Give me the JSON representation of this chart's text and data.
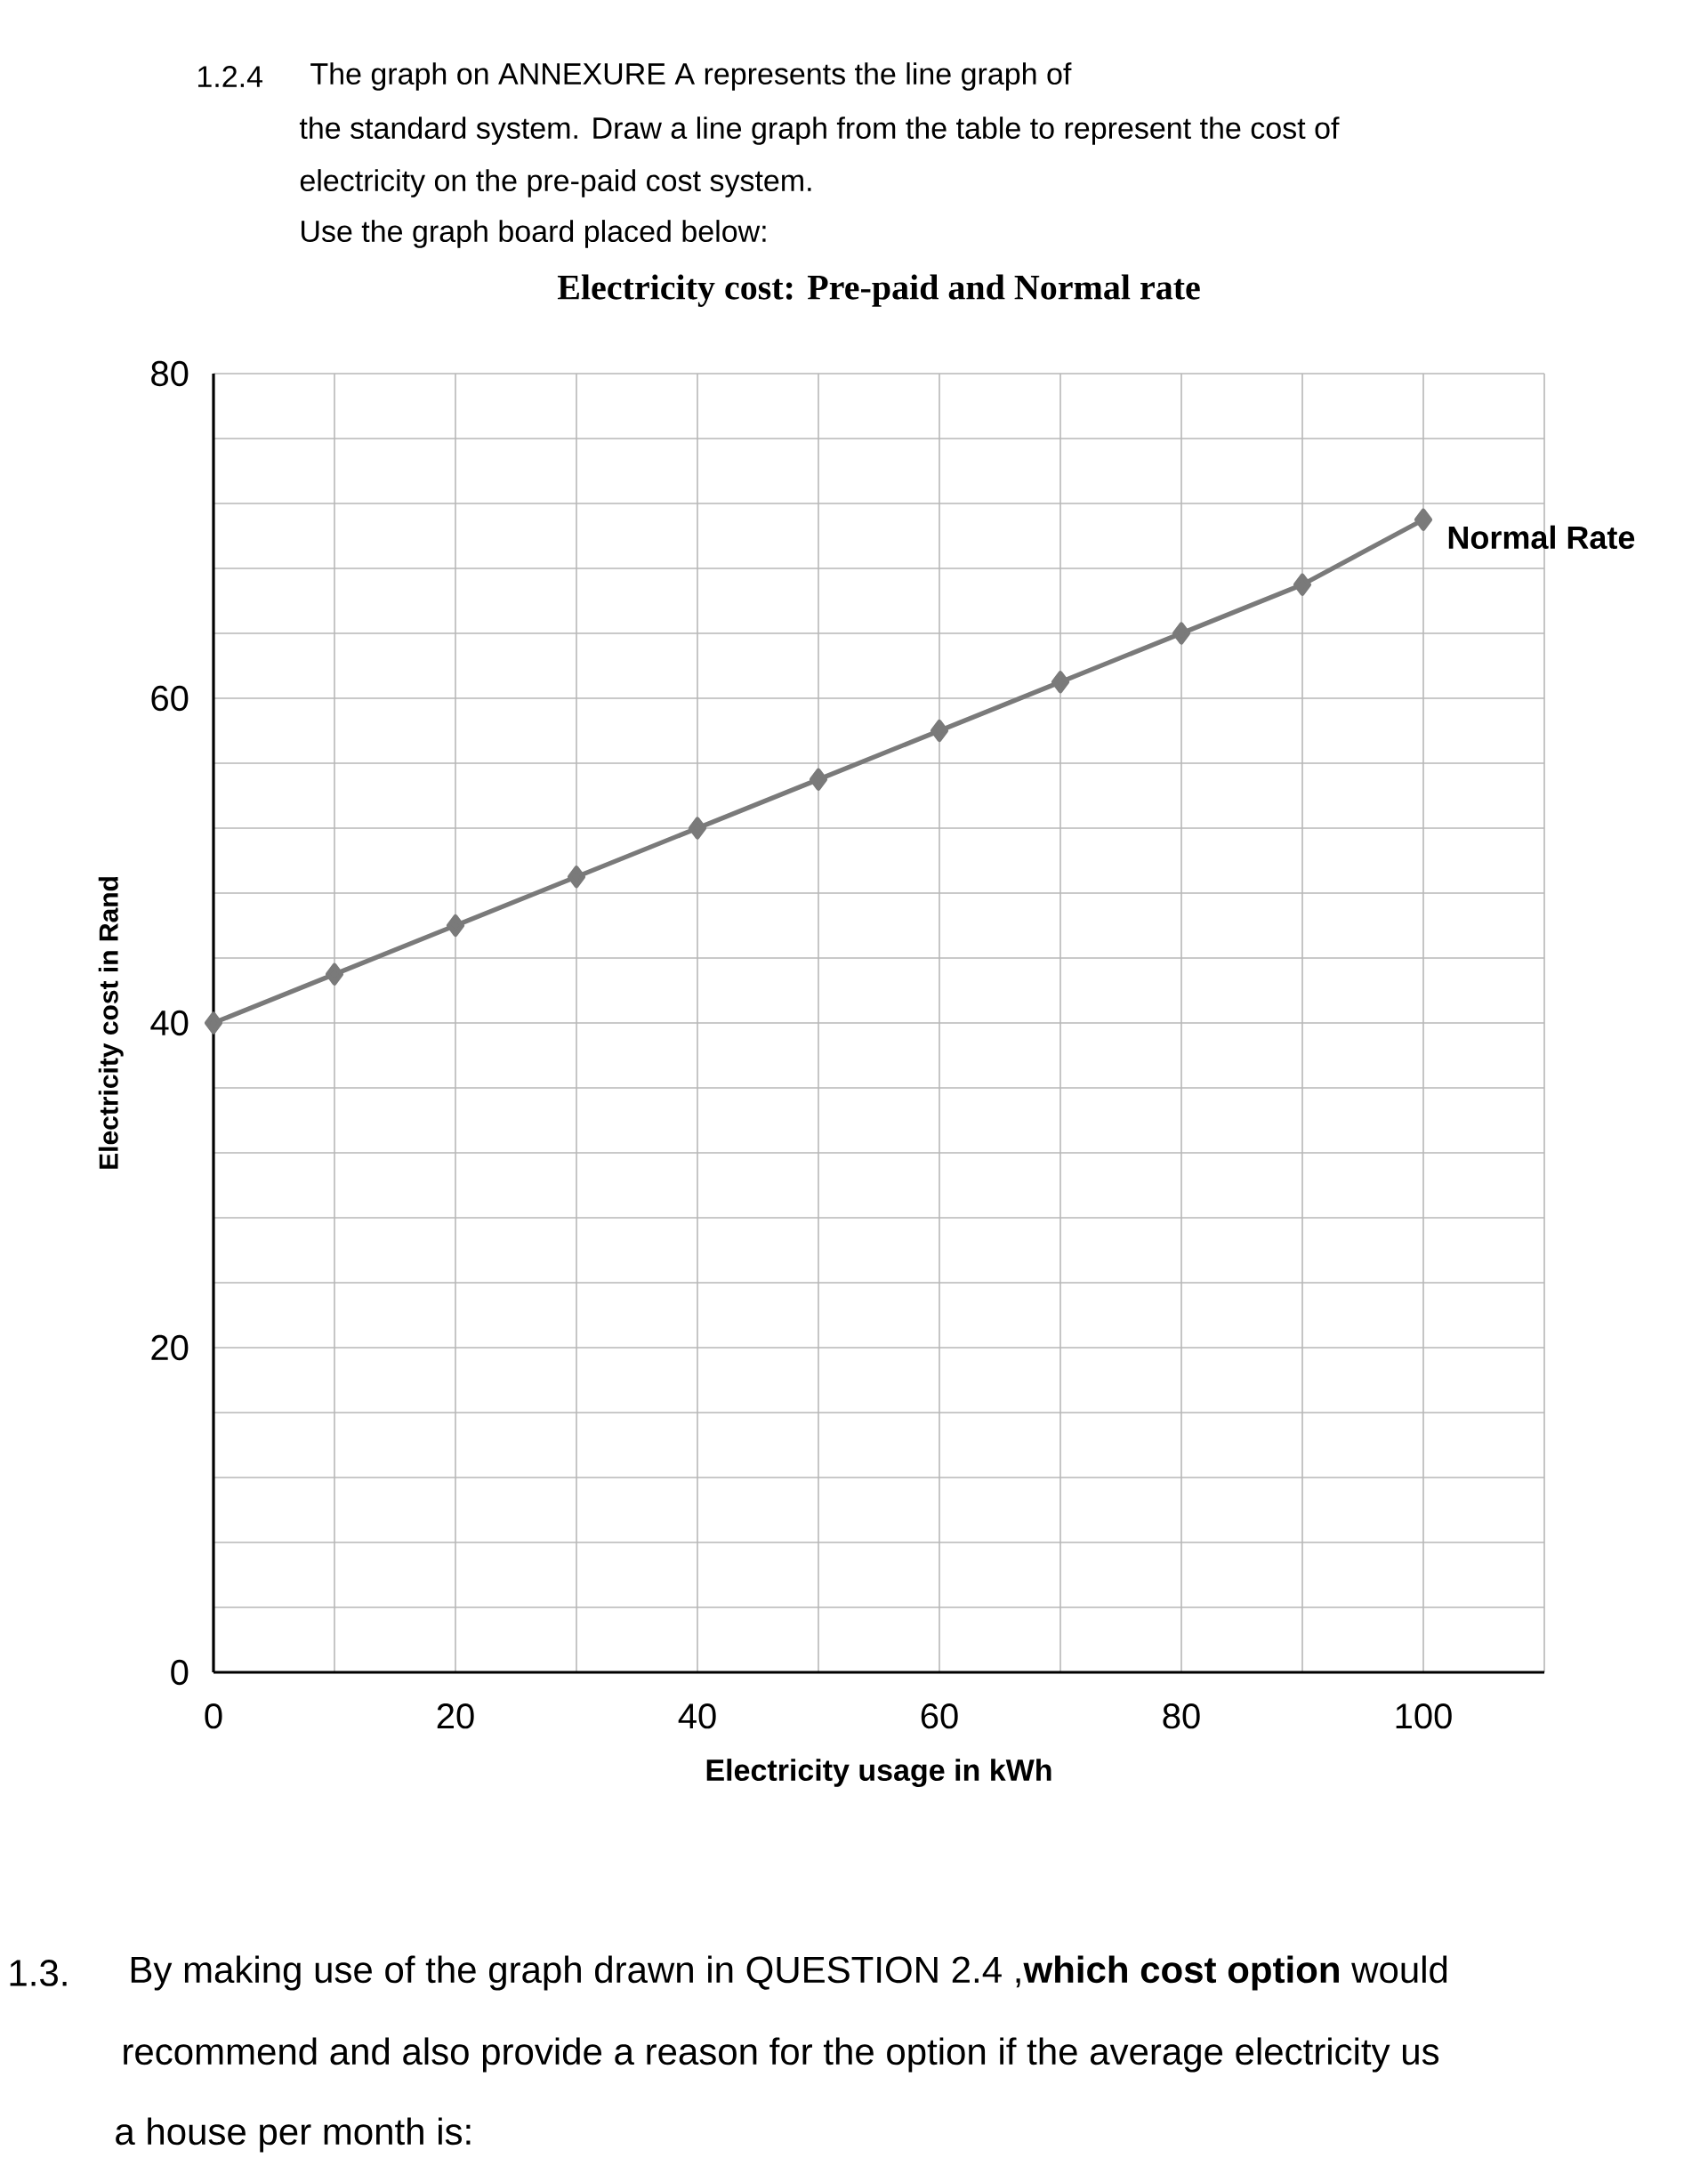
{
  "chart_data": {
    "type": "line",
    "title": "Electricity cost: Pre-paid and Normal rate",
    "xlabel": "Electricity usage in kWh",
    "ylabel": "Electricity cost in Rand",
    "x": [
      0,
      10,
      20,
      30,
      40,
      50,
      60,
      70,
      80,
      90,
      100
    ],
    "series": [
      {
        "name": "Normal Rate",
        "color": "#7a7a7a",
        "values": [
          40,
          43,
          46,
          49,
          52,
          55,
          58,
          61,
          64,
          67,
          71
        ]
      }
    ],
    "xlim": [
      0,
      110
    ],
    "ylim": [
      0,
      80
    ],
    "xticks": [
      0,
      {
        "value": 10,
        "label": null
      },
      20,
      {
        "value": 30,
        "label": null
      },
      40,
      {
        "value": 50,
        "label": null
      },
      60,
      {
        "value": 70,
        "label": null
      },
      80,
      {
        "value": 90,
        "label": null
      },
      100,
      {
        "value": 110,
        "label": null
      }
    ],
    "yticks": [
      0,
      {
        "value": 4,
        "label": null
      },
      {
        "value": 8,
        "label": null
      },
      {
        "value": 12,
        "label": null
      },
      {
        "value": 16,
        "label": null
      },
      20,
      {
        "value": 24,
        "label": null
      },
      {
        "value": 28,
        "label": null
      },
      {
        "value": 32,
        "label": null
      },
      {
        "value": 36,
        "label": null
      },
      40,
      {
        "value": 44,
        "label": null
      },
      {
        "value": 48,
        "label": null
      },
      {
        "value": 52,
        "label": null
      },
      {
        "value": 56,
        "label": null
      },
      60,
      {
        "value": 64,
        "label": null
      },
      {
        "value": 68,
        "label": null
      },
      {
        "value": 72,
        "label": null
      },
      {
        "value": 76,
        "label": null
      },
      80
    ],
    "grid": true,
    "marker": "diamond",
    "annotations": [
      "1.2.4",
      "The graph on ANNEXURE A represents the line graph of",
      "the standard system. Draw a line graph from the table to represent the cost of",
      "electricity on the pre-paid cost system.",
      "Use the graph board placed below:",
      "1.3.",
      "By making use of the graph drawn in QUESTION 2.4 ,**which cost option** would",
      "recommend and also provide a reason for the option if the average electricity us",
      "a house per month is:"
    ]
  }
}
